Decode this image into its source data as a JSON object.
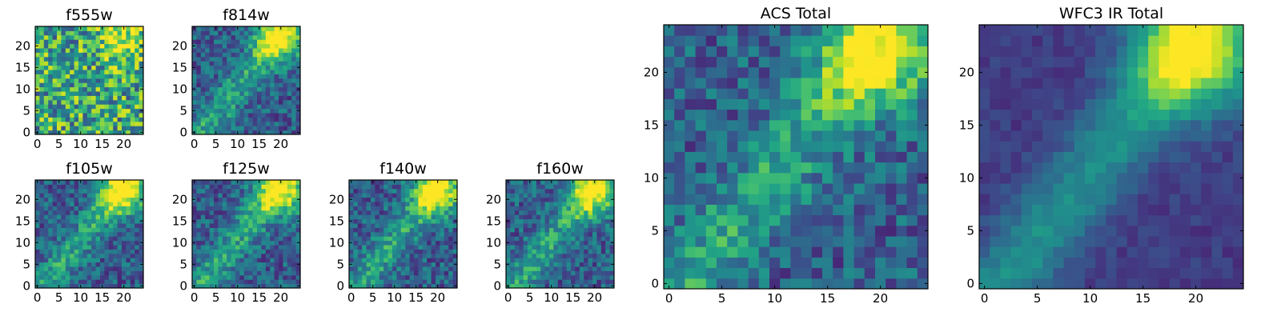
{
  "chart_data": [
    {
      "type": "heatmap",
      "title": "f555w",
      "size": 25,
      "xticks": [
        "0",
        "5",
        "10",
        "15",
        "20"
      ],
      "yticks": [
        "0",
        "5",
        "10",
        "15",
        "20"
      ],
      "xlim": [
        0,
        25
      ],
      "ylim": [
        0,
        25
      ],
      "colormap": "viridis",
      "peak_corner": "top-right",
      "structure": "noisy"
    },
    {
      "type": "heatmap",
      "title": "f814w",
      "size": 25,
      "xticks": [
        "0",
        "5",
        "10",
        "15",
        "20"
      ],
      "yticks": [
        "0",
        "5",
        "10",
        "15",
        "20"
      ],
      "xlim": [
        0,
        25
      ],
      "ylim": [
        0,
        25
      ],
      "colormap": "viridis",
      "peak_corner": "top-right",
      "structure": "diagonal-ridge"
    },
    {
      "type": "heatmap",
      "title": "f105w",
      "size": 25,
      "xticks": [
        "0",
        "5",
        "10",
        "15",
        "20"
      ],
      "yticks": [
        "0",
        "5",
        "10",
        "15",
        "20"
      ],
      "xlim": [
        0,
        25
      ],
      "ylim": [
        0,
        25
      ],
      "colormap": "viridis",
      "peak_corner": "top-right",
      "structure": "diagonal-ridge"
    },
    {
      "type": "heatmap",
      "title": "f125w",
      "size": 25,
      "xticks": [
        "0",
        "5",
        "10",
        "15",
        "20"
      ],
      "yticks": [
        "0",
        "5",
        "10",
        "15",
        "20"
      ],
      "xlim": [
        0,
        25
      ],
      "ylim": [
        0,
        25
      ],
      "colormap": "viridis",
      "peak_corner": "top-right",
      "structure": "diagonal-ridge"
    },
    {
      "type": "heatmap",
      "title": "f140w",
      "size": 25,
      "xticks": [
        "0",
        "5",
        "10",
        "15",
        "20"
      ],
      "yticks": [
        "0",
        "5",
        "10",
        "15",
        "20"
      ],
      "xlim": [
        0,
        25
      ],
      "ylim": [
        0,
        25
      ],
      "colormap": "viridis",
      "peak_corner": "top-right",
      "structure": "diagonal-ridge"
    },
    {
      "type": "heatmap",
      "title": "f160w",
      "size": 25,
      "xticks": [
        "0",
        "5",
        "10",
        "15",
        "20"
      ],
      "yticks": [
        "0",
        "5",
        "10",
        "15",
        "20"
      ],
      "xlim": [
        0,
        25
      ],
      "ylim": [
        0,
        25
      ],
      "colormap": "viridis",
      "peak_corner": "top-right",
      "structure": "diagonal-ridge"
    },
    {
      "type": "heatmap",
      "title": "ACS Total",
      "size": 25,
      "xticks": [
        "0",
        "5",
        "10",
        "15",
        "20"
      ],
      "yticks": [
        "0",
        "5",
        "10",
        "15",
        "20"
      ],
      "xlim": [
        0,
        25
      ],
      "ylim": [
        0,
        25
      ],
      "colormap": "viridis",
      "peak_corner": "top-right",
      "structure": "diagonal-ridge"
    },
    {
      "type": "heatmap",
      "title": "WFC3 IR Total",
      "size": 25,
      "xticks": [
        "0",
        "5",
        "10",
        "15",
        "20"
      ],
      "yticks": [
        "0",
        "5",
        "10",
        "15",
        "20"
      ],
      "xlim": [
        0,
        25
      ],
      "ylim": [
        0,
        25
      ],
      "colormap": "viridis",
      "peak_corner": "top-right",
      "structure": "smooth-ridge"
    }
  ]
}
